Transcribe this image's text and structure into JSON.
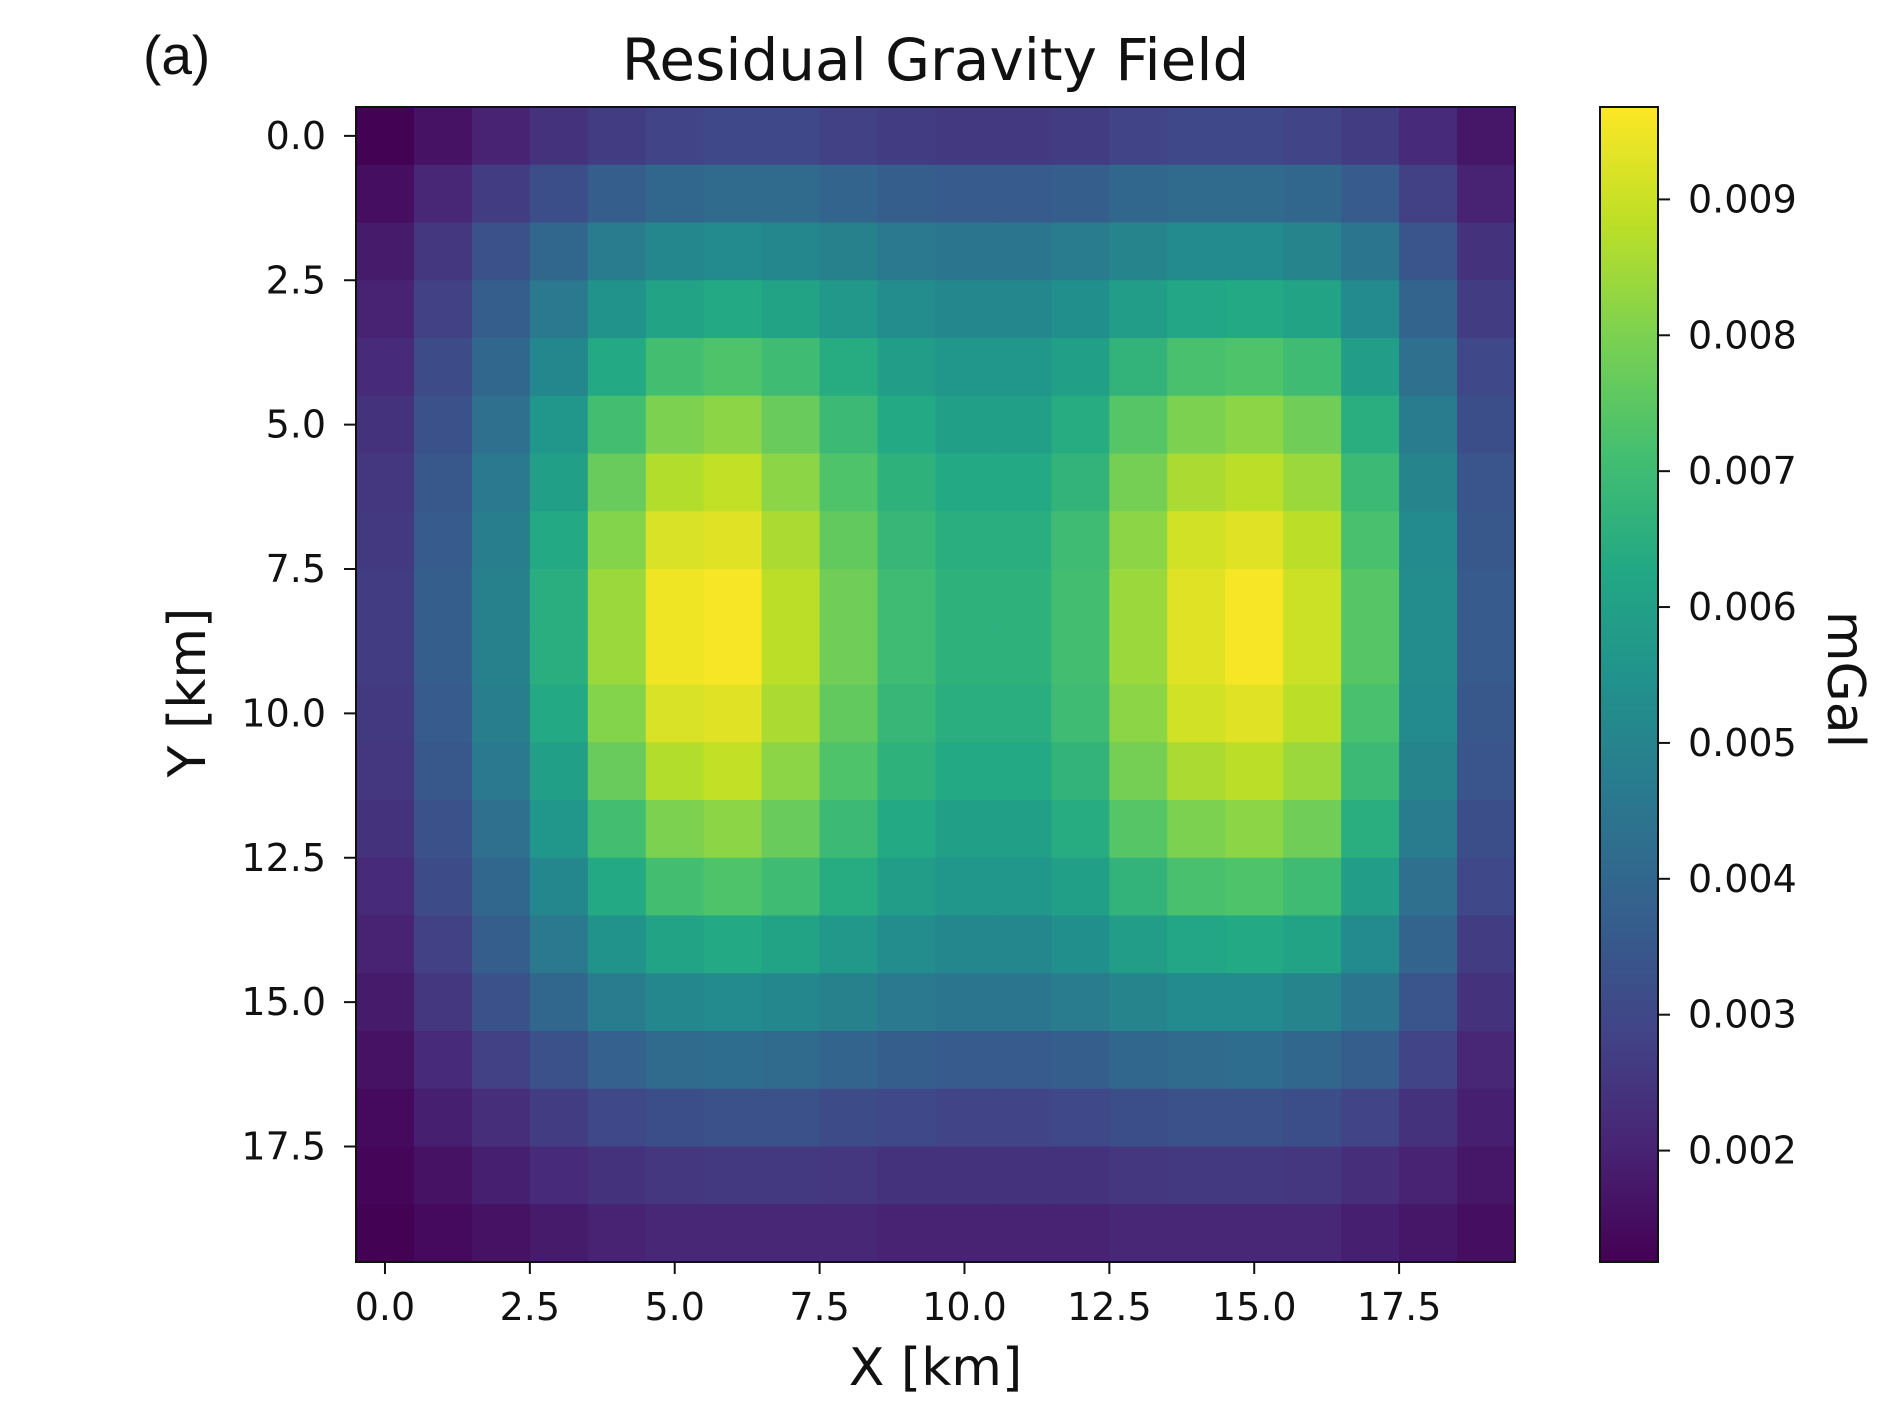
{
  "panel_label": "(a)",
  "chart_data": {
    "type": "heatmap",
    "title": "Residual Gravity Field",
    "xlabel": "X [km]",
    "ylabel": "Y [km]",
    "colorbar_label": "mGal",
    "colormap": "viridis",
    "y_axis_inverted": true,
    "grid": false,
    "xlim": [
      -0.5,
      19.5
    ],
    "ylim": [
      19.5,
      -0.5
    ],
    "x_ticks": [
      "0.0",
      "2.5",
      "5.0",
      "7.5",
      "10.0",
      "12.5",
      "15.0",
      "17.5"
    ],
    "x_tick_values": [
      0,
      2.5,
      5,
      7.5,
      10,
      12.5,
      15,
      17.5
    ],
    "y_ticks": [
      "0.0",
      "2.5",
      "5.0",
      "7.5",
      "10.0",
      "12.5",
      "15.0",
      "17.5"
    ],
    "y_tick_values": [
      0,
      2.5,
      5,
      7.5,
      10,
      12.5,
      15,
      17.5
    ],
    "colorbar_ticks": [
      "0.002",
      "0.003",
      "0.004",
      "0.005",
      "0.006",
      "0.007",
      "0.008",
      "0.009"
    ],
    "colorbar_tick_values": [
      0.002,
      0.003,
      0.004,
      0.005,
      0.006,
      0.007,
      0.008,
      0.009
    ],
    "vmin": 0.00118,
    "vmax": 0.00968,
    "grid_x": [
      0,
      1,
      2,
      3,
      4,
      5,
      6,
      7,
      8,
      9,
      10,
      11,
      12,
      13,
      14,
      15,
      16,
      17,
      18,
      19
    ],
    "grid_y": [
      0,
      1,
      2,
      3,
      4,
      5,
      6,
      7,
      8,
      9,
      10,
      11,
      12,
      13,
      14,
      15,
      16,
      17,
      18,
      19
    ],
    "values": [
      [
        0.0012,
        0.0016,
        0.002,
        0.0024,
        0.0027,
        0.0029,
        0.003,
        0.003,
        0.0028,
        0.0027,
        0.0026,
        0.0026,
        0.0027,
        0.0029,
        0.003,
        0.003,
        0.0029,
        0.0027,
        0.0022,
        0.0017
      ],
      [
        0.0015,
        0.0021,
        0.0027,
        0.0032,
        0.0037,
        0.004,
        0.0041,
        0.0041,
        0.0039,
        0.0037,
        0.0036,
        0.0036,
        0.0037,
        0.004,
        0.0041,
        0.0041,
        0.004,
        0.0036,
        0.0028,
        0.002
      ],
      [
        0.0018,
        0.0025,
        0.0033,
        0.004,
        0.0047,
        0.0051,
        0.0052,
        0.0051,
        0.0049,
        0.0046,
        0.0045,
        0.0045,
        0.0047,
        0.005,
        0.0052,
        0.0052,
        0.005,
        0.0045,
        0.0034,
        0.0024
      ],
      [
        0.002,
        0.0028,
        0.0037,
        0.0046,
        0.0055,
        0.0061,
        0.0063,
        0.0061,
        0.0057,
        0.0053,
        0.0051,
        0.0051,
        0.0054,
        0.0059,
        0.0062,
        0.0063,
        0.0061,
        0.0052,
        0.0039,
        0.0027
      ],
      [
        0.0022,
        0.0031,
        0.004,
        0.0051,
        0.0063,
        0.0071,
        0.0073,
        0.007,
        0.0064,
        0.0059,
        0.0056,
        0.0056,
        0.006,
        0.0067,
        0.0072,
        0.0073,
        0.007,
        0.0059,
        0.0043,
        0.003
      ],
      [
        0.0024,
        0.0033,
        0.0043,
        0.0056,
        0.0071,
        0.008,
        0.0082,
        0.0077,
        0.0069,
        0.0063,
        0.006,
        0.006,
        0.0064,
        0.0074,
        0.008,
        0.0082,
        0.0078,
        0.0065,
        0.0047,
        0.0032
      ],
      [
        0.0025,
        0.0035,
        0.0046,
        0.006,
        0.0077,
        0.0087,
        0.0089,
        0.0082,
        0.0073,
        0.0066,
        0.0063,
        0.0063,
        0.0067,
        0.0079,
        0.0086,
        0.0088,
        0.0084,
        0.0069,
        0.005,
        0.0034
      ],
      [
        0.0026,
        0.0036,
        0.0048,
        0.0063,
        0.0081,
        0.0092,
        0.0093,
        0.0086,
        0.0076,
        0.0068,
        0.0065,
        0.0065,
        0.007,
        0.0082,
        0.0091,
        0.0093,
        0.0088,
        0.0072,
        0.0052,
        0.0035
      ],
      [
        0.0027,
        0.0037,
        0.0049,
        0.0065,
        0.0084,
        0.0095,
        0.0096,
        0.0088,
        0.0078,
        0.007,
        0.0066,
        0.0066,
        0.0071,
        0.0084,
        0.0093,
        0.0096,
        0.009,
        0.0074,
        0.0053,
        0.0036
      ],
      [
        0.0027,
        0.0037,
        0.0049,
        0.0065,
        0.0084,
        0.0095,
        0.0096,
        0.0088,
        0.0078,
        0.007,
        0.0066,
        0.0066,
        0.0071,
        0.0084,
        0.0093,
        0.0096,
        0.009,
        0.0074,
        0.0053,
        0.0036
      ],
      [
        0.0026,
        0.0036,
        0.0048,
        0.0063,
        0.0081,
        0.0092,
        0.0093,
        0.0086,
        0.0076,
        0.0068,
        0.0065,
        0.0065,
        0.007,
        0.0082,
        0.0091,
        0.0093,
        0.0088,
        0.0072,
        0.0052,
        0.0035
      ],
      [
        0.0025,
        0.0035,
        0.0046,
        0.006,
        0.0077,
        0.0087,
        0.0089,
        0.0082,
        0.0073,
        0.0066,
        0.0063,
        0.0063,
        0.0067,
        0.0079,
        0.0086,
        0.0088,
        0.0084,
        0.0069,
        0.005,
        0.0034
      ],
      [
        0.0024,
        0.0033,
        0.0043,
        0.0056,
        0.0071,
        0.008,
        0.0082,
        0.0077,
        0.0069,
        0.0063,
        0.006,
        0.006,
        0.0064,
        0.0074,
        0.008,
        0.0082,
        0.0078,
        0.0065,
        0.0047,
        0.0032
      ],
      [
        0.0022,
        0.0031,
        0.004,
        0.0051,
        0.0063,
        0.0071,
        0.0073,
        0.007,
        0.0064,
        0.0059,
        0.0056,
        0.0056,
        0.006,
        0.0067,
        0.0072,
        0.0073,
        0.007,
        0.0059,
        0.0043,
        0.003
      ],
      [
        0.002,
        0.0028,
        0.0037,
        0.0046,
        0.0055,
        0.0061,
        0.0063,
        0.0061,
        0.0057,
        0.0053,
        0.0051,
        0.0051,
        0.0054,
        0.0059,
        0.0062,
        0.0063,
        0.0061,
        0.0052,
        0.0039,
        0.0027
      ],
      [
        0.0018,
        0.0025,
        0.0033,
        0.004,
        0.0047,
        0.0051,
        0.0052,
        0.0051,
        0.0049,
        0.0046,
        0.0045,
        0.0045,
        0.0047,
        0.005,
        0.0052,
        0.0052,
        0.005,
        0.0045,
        0.0034,
        0.0024
      ],
      [
        0.0016,
        0.0022,
        0.0028,
        0.0033,
        0.0038,
        0.0041,
        0.0042,
        0.0041,
        0.0039,
        0.0037,
        0.0036,
        0.0036,
        0.0037,
        0.004,
        0.0041,
        0.0042,
        0.004,
        0.0037,
        0.0029,
        0.0021
      ],
      [
        0.0014,
        0.0019,
        0.0023,
        0.0027,
        0.003,
        0.0032,
        0.0033,
        0.0033,
        0.0031,
        0.003,
        0.0029,
        0.0029,
        0.003,
        0.0032,
        0.0033,
        0.0033,
        0.0032,
        0.0029,
        0.0024,
        0.0019
      ],
      [
        0.0013,
        0.0016,
        0.0019,
        0.0022,
        0.0024,
        0.0025,
        0.0026,
        0.0026,
        0.0025,
        0.0024,
        0.0024,
        0.0024,
        0.0024,
        0.0025,
        0.0026,
        0.0026,
        0.0025,
        0.0023,
        0.002,
        0.0017
      ],
      [
        0.0012,
        0.0014,
        0.0016,
        0.0018,
        0.002,
        0.0021,
        0.0021,
        0.0021,
        0.0021,
        0.002,
        0.002,
        0.002,
        0.002,
        0.0021,
        0.0021,
        0.0021,
        0.0021,
        0.0019,
        0.0017,
        0.0015
      ]
    ]
  }
}
